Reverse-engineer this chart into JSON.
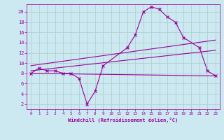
{
  "xlabel": "Windchill (Refroidissement éolien,°C)",
  "background_color": "#cce8f0",
  "line_color": "#990099",
  "grid_color": "#aacccc",
  "xlim": [
    -0.5,
    23.5
  ],
  "ylim": [
    1,
    21.5
  ],
  "yticks": [
    2,
    4,
    6,
    8,
    10,
    12,
    14,
    16,
    18,
    20
  ],
  "xticks": [
    0,
    1,
    2,
    3,
    4,
    5,
    6,
    7,
    8,
    9,
    10,
    11,
    12,
    13,
    14,
    15,
    16,
    17,
    18,
    19,
    20,
    21,
    22,
    23
  ],
  "series1_x": [
    0,
    1,
    2,
    3,
    4,
    5,
    6,
    7,
    8,
    9,
    12,
    13,
    14,
    15,
    16,
    17,
    18,
    19,
    21,
    22,
    23
  ],
  "series1_y": [
    8.0,
    9.0,
    8.5,
    8.5,
    8.0,
    8.0,
    7.0,
    2.0,
    4.5,
    9.5,
    13.0,
    15.5,
    20.0,
    21.0,
    20.5,
    19.0,
    18.0,
    15.0,
    13.0,
    8.5,
    7.5
  ],
  "series2_x": [
    0,
    23
  ],
  "series2_y": [
    8.0,
    7.5
  ],
  "series3_x": [
    0,
    23
  ],
  "series3_y": [
    8.5,
    12.5
  ],
  "series4_x": [
    0,
    23
  ],
  "series4_y": [
    9.5,
    14.5
  ]
}
